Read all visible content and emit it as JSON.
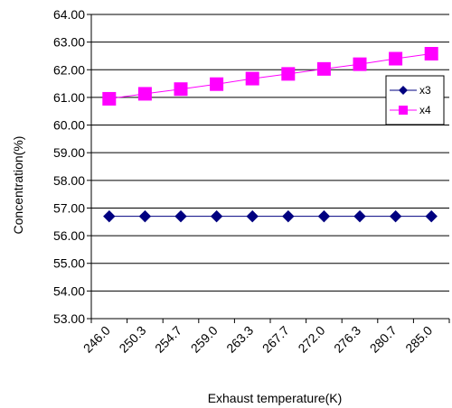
{
  "chart_data": {
    "type": "line",
    "title": "",
    "xlabel": "Exhaust temperature(K)",
    "ylabel": "Concentration(%)",
    "ylim": [
      53.0,
      64.0
    ],
    "y_ticks": [
      "53.00",
      "54.00",
      "55.00",
      "56.00",
      "57.00",
      "58.00",
      "59.00",
      "60.00",
      "61.00",
      "62.00",
      "63.00",
      "64.00"
    ],
    "categories": [
      "246.0",
      "250.3",
      "254.7",
      "259.0",
      "263.3",
      "267.7",
      "272.0",
      "276.3",
      "280.7",
      "285.0"
    ],
    "grid": "horizontal",
    "legend_position": "right",
    "series": [
      {
        "name": "x3",
        "marker": "diamond",
        "color": "#000080",
        "values": [
          56.7,
          56.7,
          56.7,
          56.7,
          56.7,
          56.7,
          56.7,
          56.7,
          56.7,
          56.7
        ]
      },
      {
        "name": "x4",
        "marker": "square",
        "color": "#FF00FF",
        "values": [
          60.95,
          61.13,
          61.3,
          61.48,
          61.68,
          61.85,
          62.03,
          62.2,
          62.4,
          62.58
        ]
      }
    ]
  }
}
